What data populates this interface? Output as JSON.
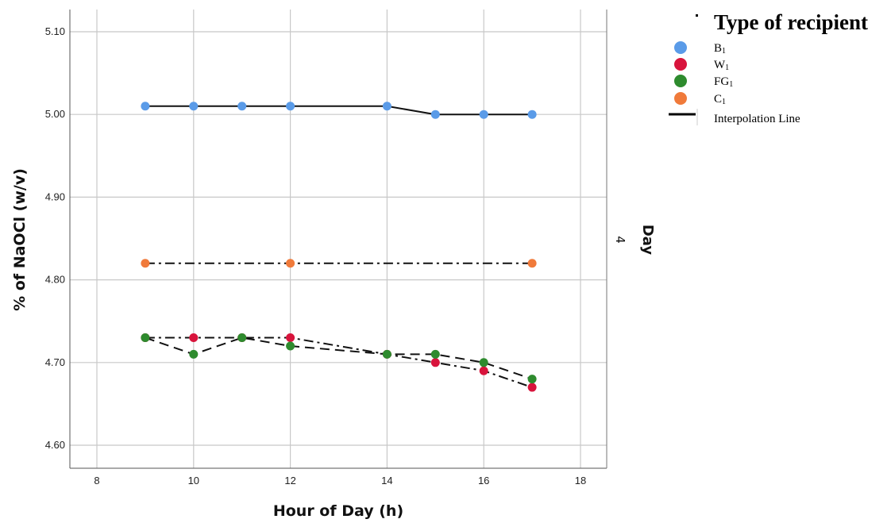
{
  "chart_data": {
    "type": "line",
    "xlabel": "Hour of Day (h)",
    "ylabel": "% of NaOCl (w/v)",
    "xlim": [
      7.5,
      18.5
    ],
    "ylim": [
      4.575,
      5.125
    ],
    "xticks": [
      "8",
      "10",
      "12",
      "14",
      "16",
      "18"
    ],
    "yticks": [
      "4.60",
      "4.70",
      "4.80",
      "4.90",
      "5.00",
      "5.10"
    ],
    "grid": true,
    "panel": {
      "label": "Day",
      "value": "4"
    },
    "legend": {
      "title": "Type of recipient",
      "placement": "top-right",
      "interpolation_label": "Interpolation Line"
    },
    "series": [
      {
        "name": "B1",
        "label_main": "B",
        "label_sub": "1",
        "color": "#5a9be8",
        "line_style": "solid",
        "x": [
          9,
          10,
          11,
          12,
          14,
          15,
          16,
          17
        ],
        "y": [
          5.01,
          5.01,
          5.01,
          5.01,
          5.01,
          5.0,
          5.0,
          5.0
        ]
      },
      {
        "name": "W1",
        "label_main": "W",
        "label_sub": "1",
        "color": "#d8143c",
        "line_style": "dashdot",
        "x": [
          9,
          10,
          11,
          12,
          14,
          15,
          16,
          17
        ],
        "y": [
          4.73,
          4.73,
          4.73,
          4.73,
          4.71,
          4.7,
          4.69,
          4.67
        ]
      },
      {
        "name": "FG1",
        "label_main": "FG",
        "label_sub": "1",
        "color": "#2e8b2e",
        "line_style": "dashed",
        "x": [
          9,
          10,
          11,
          12,
          14,
          15,
          16,
          17
        ],
        "y": [
          4.73,
          4.71,
          4.73,
          4.72,
          4.71,
          4.71,
          4.7,
          4.68
        ]
      },
      {
        "name": "C1",
        "label_main": "C",
        "label_sub": "1",
        "color": "#f07a3a",
        "line_style": "dashdot",
        "x": [
          9,
          12,
          17
        ],
        "y": [
          4.82,
          4.82,
          4.82
        ]
      }
    ]
  }
}
